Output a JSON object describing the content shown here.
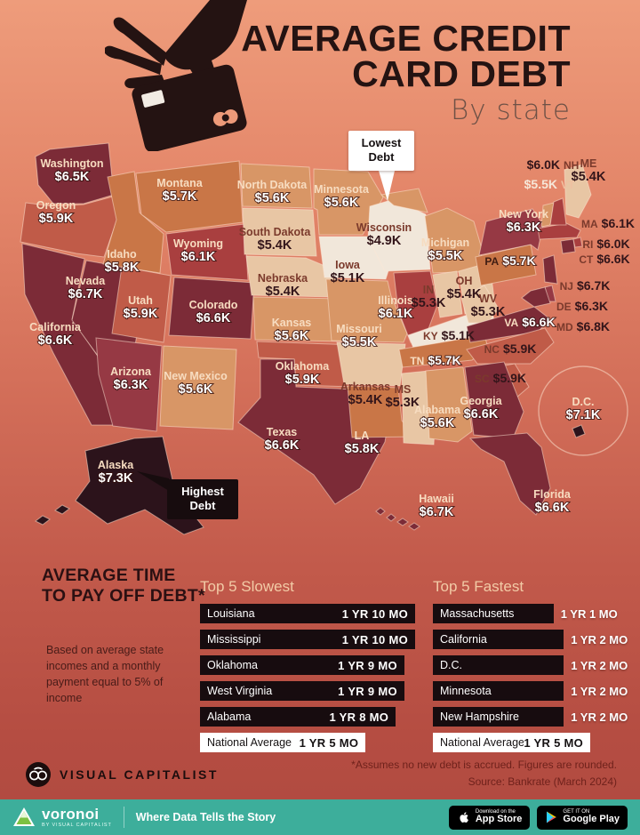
{
  "header": {
    "title_line1": "AVERAGE CREDIT",
    "title_line2": "CARD DEBT",
    "subtitle": "By state"
  },
  "callouts": {
    "lowest": "Lowest Debt",
    "highest": "Highest Debt"
  },
  "color_scale": [
    {
      "max": 5.15,
      "color": "#f1e7da"
    },
    {
      "max": 5.45,
      "color": "#e8c6a4"
    },
    {
      "max": 5.65,
      "color": "#d89666"
    },
    {
      "max": 5.85,
      "color": "#c97647"
    },
    {
      "max": 5.95,
      "color": "#c05b48"
    },
    {
      "max": 6.15,
      "color": "#a93f3f"
    },
    {
      "max": 6.35,
      "color": "#963944"
    },
    {
      "max": 6.85,
      "color": "#7c2b37"
    },
    {
      "max": 9.99,
      "color": "#2c131b"
    }
  ],
  "chart_data": {
    "type": "choropleth",
    "title": "Average Credit Card Debt by state",
    "unit": "USD thousands",
    "states": [
      {
        "id": "WA",
        "name": "Washington",
        "label": "$6.5K",
        "value_k": 6.5
      },
      {
        "id": "OR",
        "name": "Oregon",
        "label": "$5.9K",
        "value_k": 5.9
      },
      {
        "id": "CA",
        "name": "California",
        "label": "$6.6K",
        "value_k": 6.6
      },
      {
        "id": "NV",
        "name": "Nevada",
        "label": "$6.7K",
        "value_k": 6.7
      },
      {
        "id": "ID",
        "name": "Idaho",
        "label": "$5.8K",
        "value_k": 5.8
      },
      {
        "id": "MT",
        "name": "Montana",
        "label": "$5.7K",
        "value_k": 5.7
      },
      {
        "id": "WY",
        "name": "Wyoming",
        "label": "$6.1K",
        "value_k": 6.1
      },
      {
        "id": "UT",
        "name": "Utah",
        "label": "$5.9K",
        "value_k": 5.9
      },
      {
        "id": "CO",
        "name": "Colorado",
        "label": "$6.6K",
        "value_k": 6.6
      },
      {
        "id": "AZ",
        "name": "Arizona",
        "label": "$6.3K",
        "value_k": 6.3
      },
      {
        "id": "NM",
        "name": "New Mexico",
        "label": "$5.6K",
        "value_k": 5.6
      },
      {
        "id": "ND",
        "name": "North Dakota",
        "label": "$5.6K",
        "value_k": 5.6
      },
      {
        "id": "SD",
        "name": "South Dakota",
        "label": "$5.4K",
        "value_k": 5.4
      },
      {
        "id": "NE",
        "name": "Nebraska",
        "label": "$5.4K",
        "value_k": 5.4
      },
      {
        "id": "KS",
        "name": "Kansas",
        "label": "$5.6K",
        "value_k": 5.6
      },
      {
        "id": "OK",
        "name": "Oklahoma",
        "label": "$5.9K",
        "value_k": 5.9
      },
      {
        "id": "TX",
        "name": "Texas",
        "label": "$6.6K",
        "value_k": 6.6
      },
      {
        "id": "MN",
        "name": "Minnesota",
        "label": "$5.6K",
        "value_k": 5.6
      },
      {
        "id": "IA",
        "name": "Iowa",
        "label": "$5.1K",
        "value_k": 5.1
      },
      {
        "id": "MO",
        "name": "Missouri",
        "label": "$5.5K",
        "value_k": 5.5
      },
      {
        "id": "AR",
        "name": "Arkansas",
        "label": "$5.4K",
        "value_k": 5.4
      },
      {
        "id": "LA",
        "name": "LA",
        "label": "$5.8K",
        "value_k": 5.8
      },
      {
        "id": "WI",
        "name": "Wisconsin",
        "label": "$4.9K",
        "value_k": 4.9
      },
      {
        "id": "IL",
        "name": "Illinois",
        "label": "$6.1K",
        "value_k": 6.1
      },
      {
        "id": "MS",
        "name": "MS",
        "label": "$5.3K",
        "value_k": 5.3
      },
      {
        "id": "MI",
        "name": "Michigan",
        "label": "$5.5K",
        "value_k": 5.5
      },
      {
        "id": "IN",
        "name": "IN",
        "label": "$5.3K",
        "value_k": 5.3
      },
      {
        "id": "OH",
        "name": "OH",
        "label": "$5.4K",
        "value_k": 5.4
      },
      {
        "id": "KY",
        "name": "KY",
        "label": "$5.1K",
        "value_k": 5.1
      },
      {
        "id": "TN",
        "name": "TN",
        "label": "$5.7K",
        "value_k": 5.7
      },
      {
        "id": "WV",
        "name": "WV",
        "label": "$5.3K",
        "value_k": 5.3
      },
      {
        "id": "VA",
        "name": "VA",
        "label": "$6.6K",
        "value_k": 6.6
      },
      {
        "id": "NC",
        "name": "NC",
        "label": "$5.9K",
        "value_k": 5.9
      },
      {
        "id": "SC",
        "name": "SC",
        "label": "$5.9K",
        "value_k": 5.9
      },
      {
        "id": "GA",
        "name": "Georgia",
        "label": "$6.6K",
        "value_k": 6.6
      },
      {
        "id": "AL",
        "name": "Alabama",
        "label": "$5.6K",
        "value_k": 5.6
      },
      {
        "id": "FL",
        "name": "Florida",
        "label": "$6.6K",
        "value_k": 6.6
      },
      {
        "id": "PA",
        "name": "PA",
        "label": "$5.7K",
        "value_k": 5.7
      },
      {
        "id": "NY",
        "name": "New York",
        "label": "$6.3K",
        "value_k": 6.3
      },
      {
        "id": "NJ",
        "name": "NJ",
        "label": "$6.7K",
        "value_k": 6.7
      },
      {
        "id": "DE",
        "name": "DE",
        "label": "$6.3K",
        "value_k": 6.3
      },
      {
        "id": "MD",
        "name": "MD",
        "label": "$6.8K",
        "value_k": 6.8
      },
      {
        "id": "CT",
        "name": "CT",
        "label": "$6.6K",
        "value_k": 6.6
      },
      {
        "id": "RI",
        "name": "RI",
        "label": "$6.0K",
        "value_k": 6.0
      },
      {
        "id": "MA",
        "name": "MA",
        "label": "$6.1K",
        "value_k": 6.1
      },
      {
        "id": "VT",
        "name": "VT",
        "label": "$5.5K",
        "value_k": 5.5
      },
      {
        "id": "NH",
        "name": "NH",
        "label": "$6.0K",
        "value_k": 6.0
      },
      {
        "id": "ME",
        "name": "ME",
        "label": "$5.4K",
        "value_k": 5.4
      },
      {
        "id": "AK",
        "name": "Alaska",
        "label": "$7.3K",
        "value_k": 7.3
      },
      {
        "id": "HI",
        "name": "Hawaii",
        "label": "$6.7K",
        "value_k": 6.7
      },
      {
        "id": "DC",
        "name": "D.C.",
        "label": "$7.1K",
        "value_k": 7.1
      }
    ],
    "payoff_tables": [
      {
        "title": "Top 5 Slowest",
        "rows": [
          {
            "state": "Louisiana",
            "time": "1 YR 10 MO",
            "months": 22
          },
          {
            "state": "Mississippi",
            "time": "1 YR 10 MO",
            "months": 22
          },
          {
            "state": "Oklahoma",
            "time": "1 YR 9 MO",
            "months": 21
          },
          {
            "state": "West Virginia",
            "time": "1 YR 9 MO",
            "months": 21
          },
          {
            "state": "Alabama",
            "time": "1 YR 8 MO",
            "months": 20
          }
        ],
        "national": {
          "state": "National Average",
          "time": "1 YR 5 MO",
          "months": 17
        }
      },
      {
        "title": "Top 5 Fastest",
        "rows": [
          {
            "state": "Massachusetts",
            "time": "1 YR 1 MO",
            "months": 13
          },
          {
            "state": "California",
            "time": "1 YR 2 MO",
            "months": 14
          },
          {
            "state": "D.C.",
            "time": "1 YR 2 MO",
            "months": 14
          },
          {
            "state": "Minnesota",
            "time": "1 YR 2 MO",
            "months": 14
          },
          {
            "state": "New Hampshire",
            "time": "1 YR 2 MO",
            "months": 14
          }
        ],
        "national": {
          "state": "National Average",
          "time": "1 YR 5 MO",
          "months": 17
        }
      }
    ]
  },
  "payoff": {
    "heading_line1": "AVERAGE TIME",
    "heading_line2": "TO PAY OFF DEBT*",
    "note": "Based on average state incomes and a monthly payment equal to 5% of income"
  },
  "footer": {
    "brand": "VISUAL CAPITALIST",
    "note1": "*Assumes no new debt is accrued. Figures are rounded.",
    "note2": "Source: Bankrate (March 2024)",
    "voronoi_name": "voronoi",
    "voronoi_sub": "BY VISUAL CAPITALIST",
    "tagline": "Where Data Tells the Story",
    "badge1_top": "Download on the",
    "badge1_name": "App Store",
    "badge2_top": "GET IT ON",
    "badge2_name": "Google Play"
  }
}
